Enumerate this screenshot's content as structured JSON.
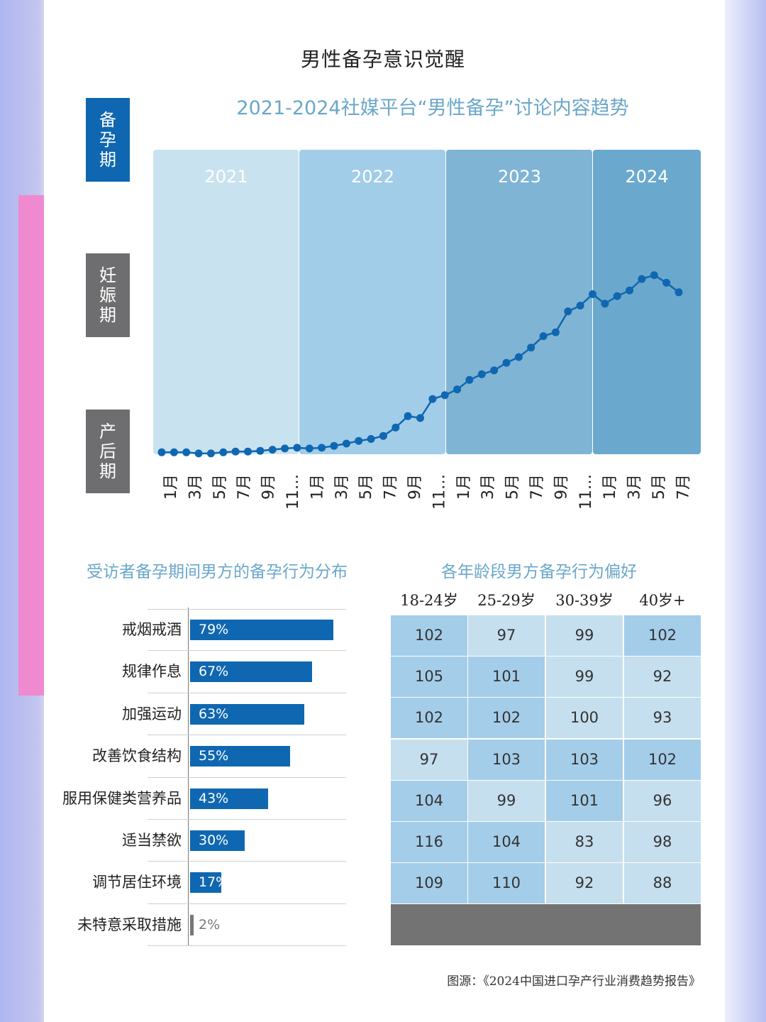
{
  "page": {
    "title": "男性备孕意识觉醒",
    "source": "图源：《2024中国进口孕产行业消费趋势报告》"
  },
  "stages": [
    "备孕期",
    "妊娠期",
    "产后期"
  ],
  "colors": {
    "accent": "#0f67b1",
    "stage_gray": "#6e6e70",
    "title_blue": "#6aa7c9",
    "year_bands": [
      "#c9e2ef",
      "#a2cde9",
      "#80b4d5",
      "#6aa9cd"
    ],
    "heat_light": "#c5dfee",
    "heat_mid": "#a4cde9",
    "heat_footer": "#737373",
    "side_pink": "#ef8ad0"
  },
  "chart_data": [
    {
      "type": "line",
      "title": "2021-2024社媒平台“男性备孕”讨论内容趋势",
      "year_bands": [
        "2021",
        "2022",
        "2023",
        "2024"
      ],
      "x_tick_labels": [
        "1月",
        "3月",
        "5月",
        "7月",
        "9月",
        "11…",
        "1月",
        "3月",
        "5月",
        "7月",
        "9月",
        "11…",
        "1月",
        "3月",
        "5月",
        "7月",
        "9月",
        "11…",
        "1月",
        "3月",
        "5月",
        "7月"
      ],
      "grid": false,
      "y_axis_shown": false,
      "series": [
        {
          "values": [
            5,
            5,
            5,
            2,
            2,
            5,
            7,
            7,
            9,
            12,
            15,
            17,
            15,
            17,
            22,
            28,
            35,
            40,
            48,
            70,
            100,
            95,
            145,
            155,
            170,
            195,
            210,
            220,
            240,
            255,
            280,
            310,
            320,
            375,
            390,
            420,
            395,
            415,
            430,
            460,
            470,
            450,
            425
          ]
        }
      ]
    },
    {
      "type": "bar",
      "orientation": "horizontal",
      "title": "受访者备孕期间男方的备孕行为分布",
      "categories": [
        "戒烟戒酒",
        "规律作息",
        "加强运动",
        "改善饮食结构",
        "服用保健类营养品",
        "适当禁欲",
        "调节居住环境",
        "未特意采取措施"
      ],
      "values": [
        79,
        67,
        63,
        55,
        43,
        30,
        17,
        2
      ],
      "value_labels": [
        "79%",
        "67%",
        "63%",
        "55%",
        "43%",
        "30%",
        "17%",
        "2%"
      ]
    },
    {
      "type": "heatmap",
      "title": "各年龄段男方备孕行为偏好",
      "columns": [
        "18-24岁",
        "25-29岁",
        "30-39岁",
        "40岁+"
      ],
      "rows": [
        [
          102,
          97,
          99,
          102
        ],
        [
          105,
          101,
          99,
          92
        ],
        [
          102,
          102,
          100,
          93
        ],
        [
          97,
          103,
          103,
          102
        ],
        [
          104,
          99,
          101,
          96
        ],
        [
          116,
          104,
          83,
          98
        ],
        [
          109,
          110,
          92,
          88
        ]
      ]
    }
  ]
}
